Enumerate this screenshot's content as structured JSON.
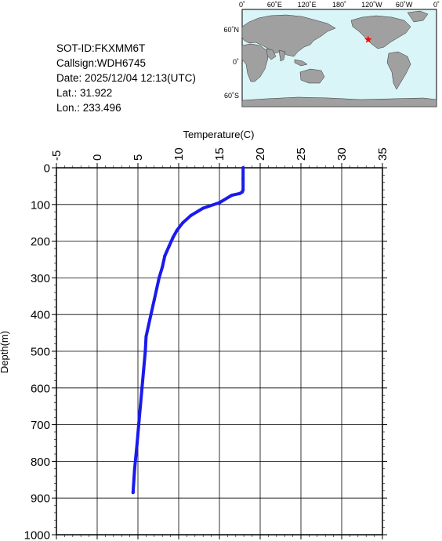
{
  "info": {
    "sot_id": "SOT-ID:FKXMM6T",
    "callsign": "Callsign:WDH6745",
    "date": "Date:  2025/12/04 12:13(UTC)",
    "lat": "Lat.:  31.922",
    "lon": "Lon.:  233.496"
  },
  "map": {
    "top_ticks": [
      "0˚",
      "60˚E",
      "120˚E",
      "180˚",
      "120˚W",
      "60˚W",
      "0˚"
    ],
    "side_ticks": [
      "60˚N",
      "0˚",
      "60˚S"
    ],
    "ocean_color": "#d9f5f7",
    "land_color": "#a0a0a0",
    "marker_color": "#ff0000",
    "marker_position": {
      "lon": 233.496,
      "lat": 31.922
    },
    "marker-icon": "star-icon"
  },
  "chart_data": {
    "type": "line",
    "xlabel": "Temperature(C)",
    "ylabel": "Depth(m)",
    "xlim": [
      -5,
      35
    ],
    "ylim": [
      1000,
      0
    ],
    "x_ticks": [
      -5,
      0,
      5,
      10,
      15,
      20,
      25,
      30,
      35
    ],
    "y_ticks": [
      0,
      100,
      200,
      300,
      400,
      500,
      600,
      700,
      800,
      900,
      1000
    ],
    "x_axis_position": "top",
    "grid": true,
    "line_color": "#1a1aee",
    "series": [
      {
        "x": [
          17.9,
          17.9,
          17.9,
          17.8,
          17.5,
          16.5,
          15.0,
          13.0,
          11.5,
          10.5,
          9.8,
          9.3,
          8.8,
          8.3,
          8.0,
          7.6,
          7.3,
          7.0,
          6.6,
          6.3,
          6.0,
          5.9,
          5.7,
          5.5,
          5.3,
          5.1,
          4.9,
          4.6,
          4.4
        ],
        "y": [
          0,
          30,
          60,
          66,
          70,
          75,
          95,
          110,
          130,
          150,
          170,
          190,
          215,
          240,
          270,
          300,
          330,
          360,
          400,
          430,
          460,
          500,
          550,
          600,
          650,
          700,
          750,
          820,
          885
        ]
      }
    ]
  }
}
